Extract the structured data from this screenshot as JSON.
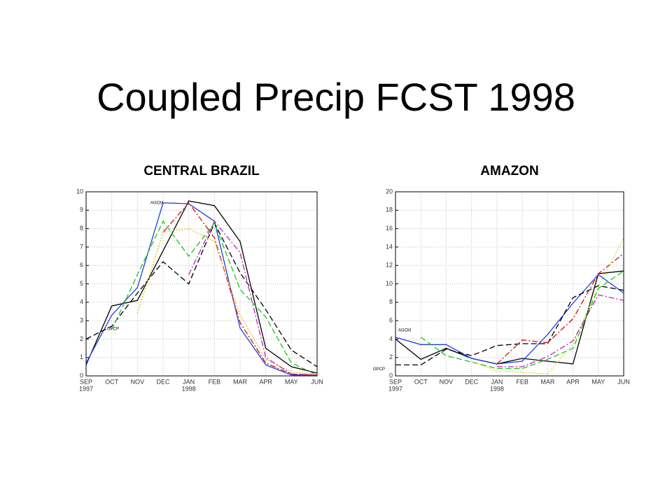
{
  "title": "Coupled Precip FCST 1998",
  "chart_data": [
    {
      "type": "line",
      "title": "CENTRAL BRAZIL",
      "categories": [
        "SEP",
        "OCT",
        "NOV",
        "DEC",
        "JAN",
        "FEB",
        "MAR",
        "APR",
        "MAY",
        "JUN"
      ],
      "x_sublabels": [
        "1997",
        null,
        null,
        null,
        "1998",
        null,
        null,
        null,
        null,
        null
      ],
      "ylim": [
        0,
        10
      ],
      "yticks": [
        0,
        1,
        2,
        3,
        4,
        5,
        6,
        7,
        8,
        9,
        10
      ],
      "grid": true,
      "series": [
        {
          "color": "#000000",
          "dash": "solid",
          "values": [
            0.6,
            3.8,
            4.1,
            6.8,
            9.5,
            9.25,
            7.3,
            1.5,
            0.5,
            0.15
          ]
        },
        {
          "name": "AGCM",
          "color": "#1f3fe0",
          "dash": "solid",
          "values": [
            0.7,
            3.3,
            4.8,
            9.4,
            9.35,
            8.4,
            2.6,
            0.6,
            0.05,
            0.05
          ]
        },
        {
          "name": "GPCP",
          "color": "#000000",
          "dash": "dashed",
          "values": [
            2.0,
            2.7,
            4.5,
            6.2,
            5.0,
            8.3,
            5.6,
            3.6,
            1.4,
            0.5
          ]
        },
        {
          "color": "#19c219",
          "dash": "dashed",
          "values": [
            null,
            2.5,
            5.5,
            8.4,
            6.5,
            8.3,
            4.7,
            3.2,
            0.7,
            0.05
          ]
        },
        {
          "color": "#d01010",
          "dash": "dashdot",
          "values": [
            null,
            null,
            null,
            7.8,
            9.4,
            7.5,
            2.9,
            0.7,
            0.1,
            0.05
          ]
        },
        {
          "color": "#e8c020",
          "dash": "dotted",
          "values": [
            null,
            null,
            3.4,
            7.8,
            8.0,
            7.3,
            3.3,
            0.9,
            0.2,
            0.1
          ]
        },
        {
          "color": "#c020c0",
          "dash": "dashdot",
          "values": [
            null,
            null,
            null,
            null,
            5.5,
            8.4,
            6.7,
            1.0,
            0.1,
            0.05
          ]
        }
      ]
    },
    {
      "type": "line",
      "title": "AMAZON",
      "categories": [
        "SEP",
        "OCT",
        "NOV",
        "DEC",
        "JAN",
        "FEB",
        "MAR",
        "APR",
        "MAY",
        "JUN"
      ],
      "x_sublabels": [
        "1997",
        null,
        null,
        null,
        "1998",
        null,
        null,
        null,
        null,
        null
      ],
      "ylim": [
        0,
        20
      ],
      "yticks": [
        0,
        2,
        4,
        6,
        8,
        10,
        12,
        14,
        16,
        18,
        20
      ],
      "grid": true,
      "series": [
        {
          "color": "#000000",
          "dash": "solid",
          "values": [
            4.0,
            1.8,
            3.0,
            1.9,
            1.3,
            1.9,
            1.6,
            1.3,
            11.1,
            11.4
          ]
        },
        {
          "name": "AGCM",
          "color": "#1f3fe0",
          "dash": "solid",
          "values": [
            4.2,
            3.4,
            3.4,
            1.9,
            1.3,
            1.6,
            4.5,
            7.9,
            11.0,
            9.0
          ]
        },
        {
          "name": "GPCP",
          "color": "#000000",
          "dash": "dashed",
          "values": [
            1.2,
            1.2,
            2.9,
            2.2,
            3.3,
            3.5,
            3.5,
            8.5,
            9.8,
            9.3
          ]
        },
        {
          "color": "#19c219",
          "dash": "dashed",
          "values": [
            null,
            4.2,
            2.2,
            1.5,
            0.8,
            0.8,
            1.8,
            3.0,
            9.5,
            11.4
          ]
        },
        {
          "color": "#d01010",
          "dash": "dashdot",
          "values": [
            null,
            null,
            null,
            null,
            1.3,
            3.9,
            3.6,
            6.2,
            11.1,
            13.3
          ]
        },
        {
          "color": "#c8e020",
          "dash": "dotted",
          "values": [
            null,
            null,
            null,
            1.6,
            0.5,
            0.4,
            0.2,
            3.5,
            9.7,
            15.0
          ]
        },
        {
          "color": "#c020c0",
          "dash": "dashdot",
          "values": [
            null,
            null,
            null,
            null,
            1.0,
            1.0,
            2.1,
            3.8,
            8.8,
            8.2
          ]
        }
      ]
    }
  ]
}
